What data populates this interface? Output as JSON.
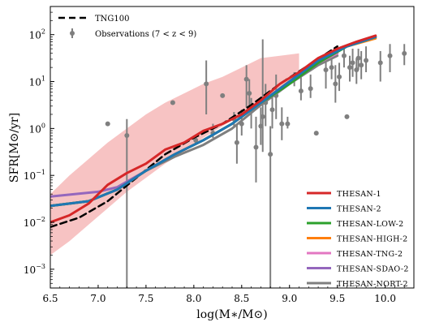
{
  "chart_data": {
    "type": "line",
    "xlabel": "log(M∗/M⊙)",
    "ylabel": "SFR[M⊙/yr]",
    "xlim": [
      6.5,
      10.3
    ],
    "ylim_log10": [
      -3.4,
      2.6
    ],
    "y_scale": "log",
    "x_ticks": [
      "6.5",
      "7.0",
      "7.5",
      "8.0",
      "8.5",
      "9.0",
      "9.5",
      "10.0"
    ],
    "x_tick_values": [
      6.5,
      7.0,
      7.5,
      8.0,
      8.5,
      9.0,
      9.5,
      10.0
    ],
    "y_ticks": [
      {
        "exp": -3,
        "label": "10",
        "sup": "−3"
      },
      {
        "exp": -2,
        "label": "10",
        "sup": "−2"
      },
      {
        "exp": -1,
        "label": "10",
        "sup": "−1"
      },
      {
        "exp": 0,
        "label": "10",
        "sup": "0"
      },
      {
        "exp": 1,
        "label": "10",
        "sup": "1"
      },
      {
        "exp": 2,
        "label": "10",
        "sup": "2"
      }
    ],
    "legend_top": {
      "placement": "top-left",
      "entries": [
        {
          "label": "TNG100",
          "style": "dashed",
          "color": "#000000"
        },
        {
          "label": "Observations (7 < z < 9)",
          "style": "errorbar",
          "color": "#7f7f7f"
        }
      ]
    },
    "legend_bottom": {
      "placement": "lower-right"
    },
    "band": {
      "name": "THESAN-1 scatter",
      "color": "#f4aaaa",
      "x": [
        6.5,
        6.7,
        6.9,
        7.1,
        7.3,
        7.5,
        7.7,
        7.9,
        8.1,
        8.3,
        8.5,
        8.7,
        8.9,
        9.1
      ],
      "low": [
        -2.7,
        -2.4,
        -2.05,
        -1.7,
        -1.35,
        -1.05,
        -0.75,
        -0.5,
        -0.2,
        0.05,
        0.3,
        0.6,
        0.85,
        1.1
      ],
      "high": [
        -1.4,
        -1.0,
        -0.65,
        -0.3,
        0.0,
        0.3,
        0.55,
        0.75,
        0.95,
        1.1,
        1.3,
        1.5,
        1.55,
        1.6
      ]
    },
    "series": [
      {
        "name": "thesan-1",
        "color": "#d62728",
        "width": 3,
        "x": [
          6.5,
          6.7,
          6.9,
          7.1,
          7.3,
          7.5,
          7.7,
          7.9,
          8.1,
          8.3,
          8.5,
          8.7,
          8.9,
          9.1,
          9.3,
          9.5,
          9.7,
          9.9
        ],
        "y": [
          -2.0,
          -1.85,
          -1.6,
          -1.2,
          -0.95,
          -0.75,
          -0.45,
          -0.3,
          -0.05,
          0.1,
          0.3,
          0.6,
          0.95,
          1.2,
          1.5,
          1.7,
          1.85,
          1.98
        ]
      },
      {
        "name": "thesan-2",
        "color": "#1f77b4",
        "width": 3,
        "x": [
          6.5,
          6.9,
          7.2,
          7.5,
          7.8,
          8.1,
          8.4,
          8.7,
          9.0,
          9.3,
          9.6,
          9.9
        ],
        "y": [
          -1.65,
          -1.55,
          -1.3,
          -0.9,
          -0.55,
          -0.25,
          0.1,
          0.55,
          1.0,
          1.45,
          1.75,
          1.95
        ]
      },
      {
        "name": "thesan-low-2",
        "color": "#2ca02c",
        "width": 3,
        "x": [
          6.5,
          6.9,
          7.2,
          7.5,
          7.8,
          8.1,
          8.4,
          8.7,
          9.0,
          9.3,
          9.6,
          9.9
        ],
        "y": [
          -1.65,
          -1.55,
          -1.3,
          -0.9,
          -0.55,
          -0.25,
          0.1,
          0.55,
          0.95,
          1.4,
          1.75,
          1.95
        ]
      },
      {
        "name": "thesan-high-2",
        "color": "#ff7f0e",
        "width": 3,
        "x": [
          6.5,
          6.9,
          7.2,
          7.5,
          7.8,
          8.1,
          8.4,
          8.7,
          9.0,
          9.3,
          9.6,
          9.9
        ],
        "y": [
          -1.65,
          -1.55,
          -1.3,
          -0.9,
          -0.55,
          -0.25,
          0.1,
          0.55,
          1.0,
          1.45,
          1.75,
          1.92
        ]
      },
      {
        "name": "thesan-tng-2",
        "color": "#e377c2",
        "width": 3,
        "x": [
          6.5,
          6.9,
          7.2,
          7.5,
          7.8,
          8.1,
          8.4,
          8.7,
          9.0,
          9.3,
          9.5
        ],
        "y": [
          -1.65,
          -1.55,
          -1.3,
          -0.9,
          -0.55,
          -0.25,
          0.1,
          0.55,
          1.0,
          1.4,
          1.6
        ]
      },
      {
        "name": "thesan-sdao-2",
        "color": "#9467bd",
        "width": 3,
        "x": [
          6.5,
          7.0,
          7.2,
          7.5,
          7.8,
          8.1,
          8.4,
          8.7,
          9.0,
          9.3,
          9.5
        ],
        "y": [
          -1.45,
          -1.35,
          -1.25,
          -0.9,
          -0.55,
          -0.25,
          0.1,
          0.55,
          1.0,
          1.4,
          1.6
        ]
      },
      {
        "name": "thesan-nort-2",
        "color": "#7f7f7f",
        "width": 3,
        "x": [
          6.5,
          6.9,
          7.2,
          7.5,
          7.8,
          8.1,
          8.4,
          8.7,
          9.0,
          9.3,
          9.5
        ],
        "y": [
          -1.65,
          -1.55,
          -1.3,
          -0.9,
          -0.6,
          -0.35,
          0.0,
          0.5,
          0.95,
          1.35,
          1.55
        ]
      },
      {
        "name": "TNG100",
        "color": "#000000",
        "width": 2.5,
        "dash": "8,5",
        "x": [
          6.5,
          6.8,
          7.1,
          7.4,
          7.7,
          8.0,
          8.3,
          8.6,
          8.9,
          9.2,
          9.5
        ],
        "y": [
          -2.1,
          -1.9,
          -1.55,
          -1.05,
          -0.55,
          -0.2,
          0.1,
          0.5,
          0.95,
          1.35,
          1.75
        ]
      }
    ],
    "observations": [
      {
        "x": 7.1,
        "y": 0.1
      },
      {
        "x": 7.3,
        "y": -0.15,
        "lo": -3.5,
        "hi": 0.2
      },
      {
        "x": 7.78,
        "y": 0.55
      },
      {
        "x": 8.13,
        "y": 0.95,
        "lo": 0.3,
        "hi": 1.45
      },
      {
        "x": 8.3,
        "y": 0.7
      },
      {
        "x": 8.02,
        "y": -0.25,
        "lo": -0.35,
        "hi": -0.15
      },
      {
        "x": 8.2,
        "y": -0.1,
        "lo": -0.2,
        "hi": 0.1
      },
      {
        "x": 8.42,
        "y": 0.2,
        "lo": 0.05,
        "hi": 0.35
      },
      {
        "x": 8.45,
        "y": -0.3,
        "lo": -0.75,
        "hi": 0.1
      },
      {
        "x": 8.5,
        "y": 0.1,
        "lo": -0.15,
        "hi": 0.4
      },
      {
        "x": 8.55,
        "y": 1.05,
        "lo": 0.45,
        "hi": 1.35
      },
      {
        "x": 8.58,
        "y": 0.75,
        "lo": 0.35,
        "hi": 1.05
      },
      {
        "x": 8.6,
        "y": 0.4,
        "lo": 0.0,
        "hi": 0.65
      },
      {
        "x": 8.65,
        "y": -0.4,
        "lo": -1.15,
        "hi": 0.25
      },
      {
        "x": 8.7,
        "y": 0.05,
        "lo": -0.35,
        "hi": 0.45
      },
      {
        "x": 8.72,
        "y": 0.25,
        "lo": -0.5,
        "hi": 1.9
      },
      {
        "x": 8.75,
        "y": 0.55,
        "lo": 0.05,
        "hi": 0.95
      },
      {
        "x": 8.8,
        "y": -0.55,
        "lo": -3.5,
        "hi": 0.05
      },
      {
        "x": 8.82,
        "y": 0.4,
        "lo": 0.0,
        "hi": 0.75
      },
      {
        "x": 8.86,
        "y": 0.7,
        "lo": 0.2,
        "hi": 1.15
      },
      {
        "x": 8.92,
        "y": 0.1,
        "lo": -0.25,
        "hi": 0.45
      },
      {
        "x": 8.98,
        "y": 0.1,
        "lo": 0.0,
        "hi": 0.25
      },
      {
        "x": 9.05,
        "y": 1.05,
        "lo": 0.9,
        "hi": 1.2
      },
      {
        "x": 9.12,
        "y": 0.8,
        "lo": 0.6,
        "hi": 1.1
      },
      {
        "x": 9.22,
        "y": 0.85,
        "lo": 0.65,
        "hi": 1.15
      },
      {
        "x": 9.28,
        "y": -0.1
      },
      {
        "x": 9.38,
        "y": 1.25,
        "lo": 0.85,
        "hi": 1.55
      },
      {
        "x": 9.44,
        "y": 1.3,
        "lo": 1.05,
        "hi": 1.6
      },
      {
        "x": 9.48,
        "y": 0.95,
        "lo": 0.55,
        "hi": 1.35
      },
      {
        "x": 9.52,
        "y": 1.1,
        "lo": 0.8,
        "hi": 1.4
      },
      {
        "x": 9.57,
        "y": 1.55,
        "lo": 1.3,
        "hi": 1.75
      },
      {
        "x": 9.6,
        "y": 0.25
      },
      {
        "x": 9.63,
        "y": 1.3,
        "lo": 1.0,
        "hi": 1.55
      },
      {
        "x": 9.66,
        "y": 1.4,
        "lo": 1.1,
        "hi": 1.7
      },
      {
        "x": 9.7,
        "y": 1.25,
        "lo": 0.95,
        "hi": 1.5
      },
      {
        "x": 9.72,
        "y": 1.5,
        "lo": 1.25,
        "hi": 1.7
      },
      {
        "x": 9.75,
        "y": 1.35,
        "lo": 1.05,
        "hi": 1.65
      },
      {
        "x": 9.8,
        "y": 1.45,
        "lo": 1.2,
        "hi": 1.75
      },
      {
        "x": 9.95,
        "y": 1.4,
        "lo": 1.0,
        "hi": 1.65
      },
      {
        "x": 10.05,
        "y": 1.55,
        "lo": 1.2,
        "hi": 1.8
      },
      {
        "x": 10.2,
        "y": 1.6,
        "lo": 1.35,
        "hi": 1.8
      }
    ]
  }
}
